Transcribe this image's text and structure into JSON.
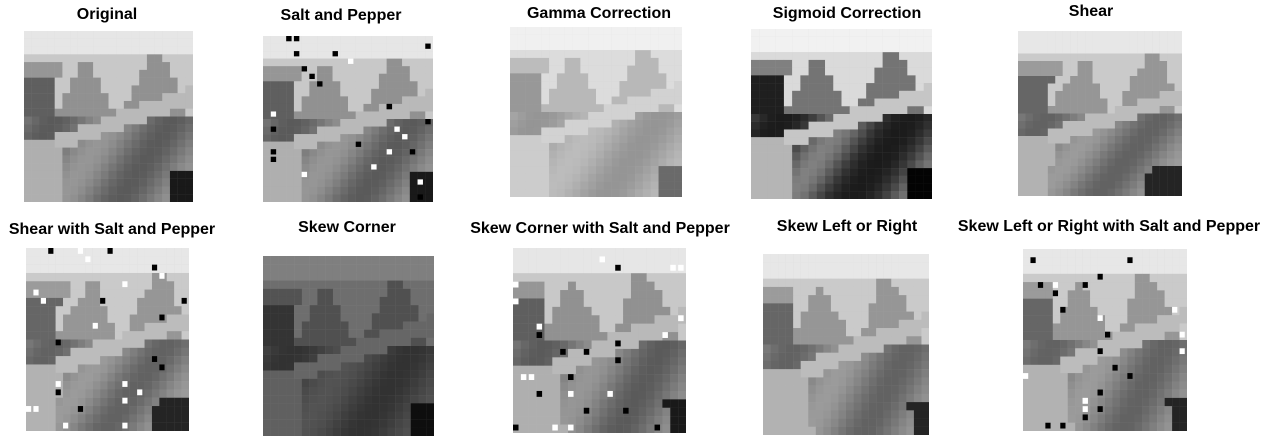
{
  "panels": [
    {
      "id": "original",
      "caption": "Original",
      "variant": "original"
    },
    {
      "id": "salt-pepper",
      "caption": "Salt and Pepper",
      "variant": "noise"
    },
    {
      "id": "gamma",
      "caption": "Gamma Correction",
      "variant": "gamma"
    },
    {
      "id": "sigmoid",
      "caption": "Sigmoid Correction",
      "variant": "sigmoid"
    },
    {
      "id": "shear",
      "caption": "Shear",
      "variant": "shear"
    },
    {
      "id": "shear-noise",
      "caption": "Shear with Salt and Pepper",
      "variant": "shear-noise"
    },
    {
      "id": "skew-corner",
      "caption": "Skew Corner",
      "variant": "dark"
    },
    {
      "id": "skew-corner-noise",
      "caption": "Skew Corner with Salt and Pepper",
      "variant": "skew-noise"
    },
    {
      "id": "skew-lr",
      "caption": "Skew Left or Right",
      "variant": "skew"
    },
    {
      "id": "skew-lr-noise",
      "caption": "Skew Left or Right with Salt and Pepper",
      "variant": "skew-lr-noise"
    }
  ]
}
